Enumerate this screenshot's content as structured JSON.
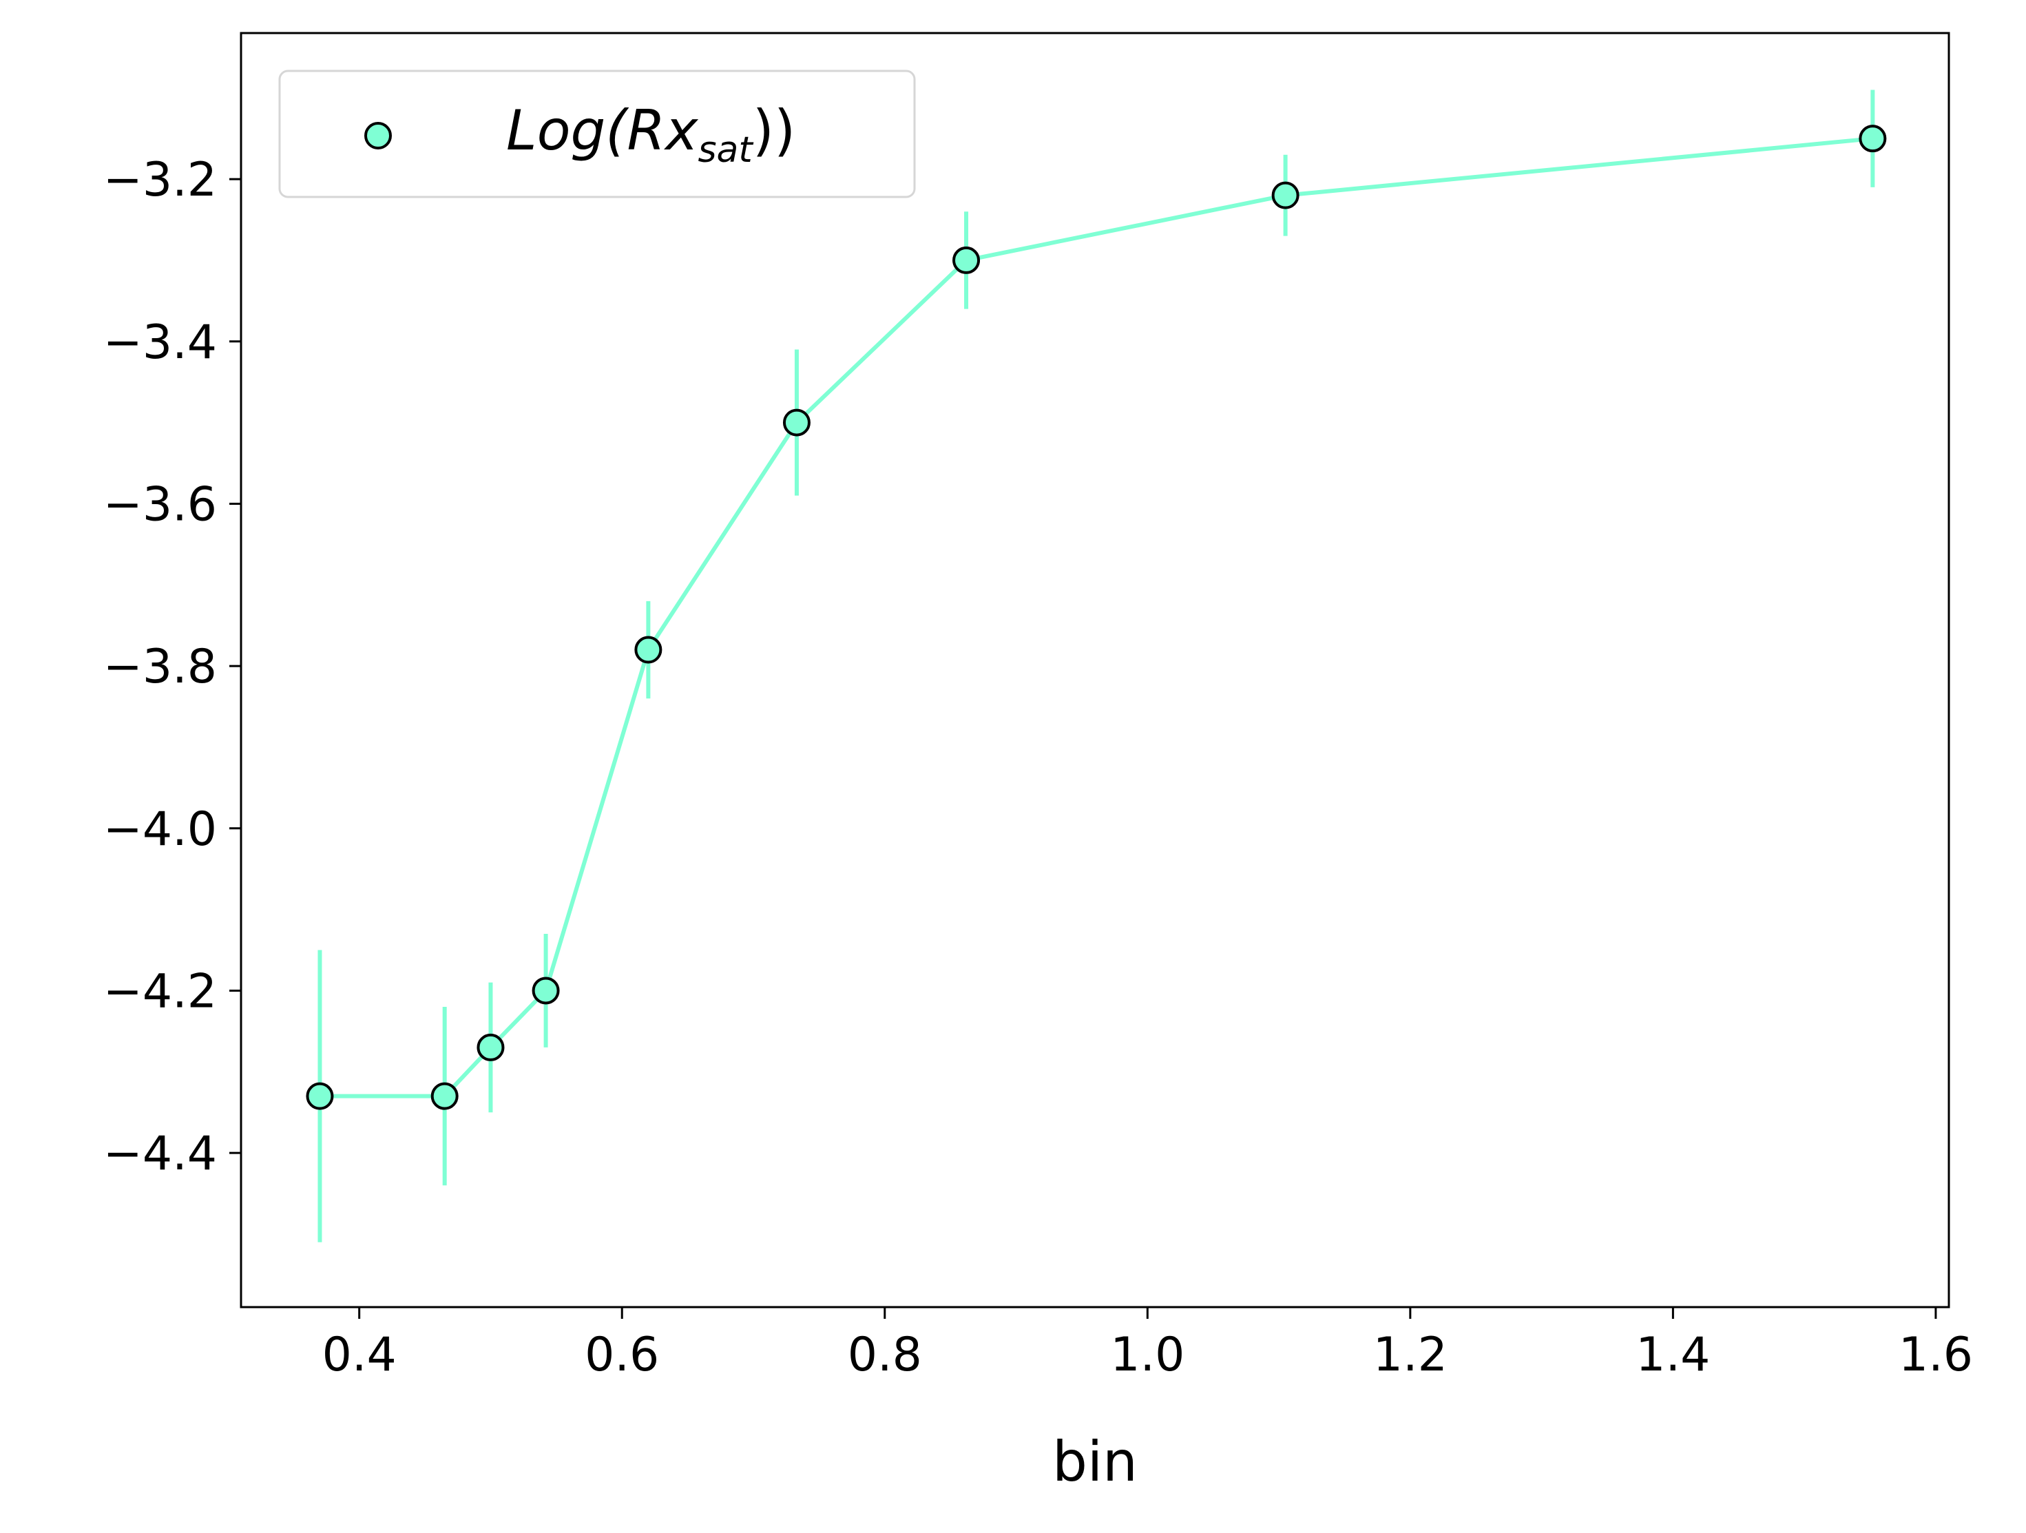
{
  "chart_data": {
    "type": "scatter",
    "xlabel": "bin",
    "ylabel": "",
    "xlim": [
      0.31,
      1.61
    ],
    "ylim": [
      -4.59,
      -3.02
    ],
    "xticks": [
      0.4,
      0.6,
      0.8,
      1.0,
      1.2,
      1.4,
      1.6
    ],
    "xtick_labels": [
      "0.4",
      "0.6",
      "0.8",
      "1.0",
      "1.2",
      "1.4",
      "1.6"
    ],
    "yticks": [
      -4.4,
      -4.2,
      -4.0,
      -3.8,
      -3.6,
      -3.4,
      -3.2
    ],
    "ytick_labels": [
      "−4.4",
      "−4.2",
      "−4.0",
      "−3.8",
      "−3.6",
      "−3.4",
      "−3.2"
    ],
    "grid": false,
    "legend_position": "top-left",
    "legend": {
      "main": "Log(Rx",
      "sub": "sat",
      "tail": "))"
    },
    "series": [
      {
        "color": "#7fffd4",
        "marker_edge": "#000000",
        "x": [
          0.37,
          0.465,
          0.5,
          0.542,
          0.62,
          0.733,
          0.862,
          1.105,
          1.552
        ],
        "y": [
          -4.33,
          -4.33,
          -4.27,
          -4.2,
          -3.78,
          -3.5,
          -3.3,
          -3.22,
          -3.15
        ],
        "yerr": [
          0.18,
          0.11,
          0.08,
          0.07,
          0.06,
          0.09,
          0.06,
          0.05,
          0.06
        ]
      }
    ]
  }
}
